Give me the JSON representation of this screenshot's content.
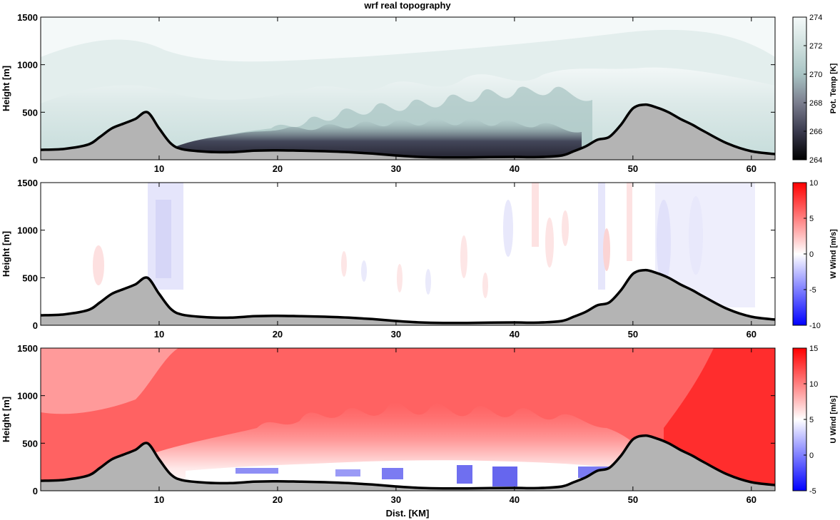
{
  "title": "wrf real topography",
  "xlabel": "Dist. [KM]",
  "chart_data": [
    {
      "type": "heatmap",
      "field": "potential temperature",
      "ylabel": "Height [m]",
      "colorbar_label": "Pot. Temp [K]",
      "colorbar_ticks": [
        264,
        266,
        268,
        270,
        272,
        274
      ],
      "clim": [
        264,
        274
      ],
      "colors": [
        "#000000",
        "#3a3a4e",
        "#7b7e8e",
        "#a9c4c4",
        "#cfe0de",
        "#f4f9f9"
      ],
      "xlim": [
        0,
        62
      ],
      "ylim": [
        0,
        1500
      ],
      "xticks": [
        10,
        20,
        30,
        40,
        50,
        60
      ],
      "yticks": [
        0,
        500,
        1000,
        1500
      ]
    },
    {
      "type": "heatmap",
      "field": "vertical wind",
      "ylabel": "Height [m]",
      "colorbar_label": "W Wind [m/s]",
      "colorbar_ticks": [
        -10,
        -5,
        0,
        5,
        10
      ],
      "clim": [
        -10,
        10
      ],
      "colors": [
        "#0000ff",
        "#ffffff",
        "#ff0000"
      ],
      "xlim": [
        0,
        62
      ],
      "ylim": [
        0,
        1500
      ],
      "xticks": [
        10,
        20,
        30,
        40,
        50,
        60
      ],
      "yticks": [
        0,
        500,
        1000,
        1500
      ]
    },
    {
      "type": "heatmap",
      "field": "horizontal wind",
      "ylabel": "Height [m]",
      "colorbar_label": "U Wind [m/s]",
      "colorbar_ticks": [
        -5,
        0,
        5,
        10,
        15
      ],
      "clim": [
        -5,
        15
      ],
      "colors": [
        "#0000ff",
        "#ffffff",
        "#ff0000"
      ],
      "xlim": [
        0,
        62
      ],
      "ylim": [
        0,
        1500
      ],
      "xticks": [
        10,
        20,
        30,
        40,
        50,
        60
      ],
      "yticks": [
        0,
        500,
        1000,
        1500
      ]
    }
  ],
  "terrain": {
    "x_km": [
      0,
      2,
      4,
      5,
      6,
      7,
      8,
      9,
      10,
      11,
      12,
      14,
      16,
      18,
      20,
      22,
      24,
      26,
      28,
      30,
      32,
      34,
      36,
      38,
      40,
      42,
      44,
      45,
      46,
      47,
      48,
      49,
      50,
      51,
      52,
      53,
      54,
      55,
      56,
      58,
      60,
      62
    ],
    "height_m": [
      105,
      115,
      160,
      240,
      330,
      380,
      430,
      500,
      330,
      170,
      110,
      85,
      80,
      95,
      100,
      95,
      90,
      80,
      65,
      45,
      30,
      25,
      25,
      28,
      30,
      28,
      45,
      90,
      140,
      210,
      240,
      370,
      540,
      580,
      550,
      500,
      430,
      370,
      300,
      170,
      90,
      60
    ],
    "fill_color": "#b4b4b4",
    "line_color": "#000000"
  }
}
